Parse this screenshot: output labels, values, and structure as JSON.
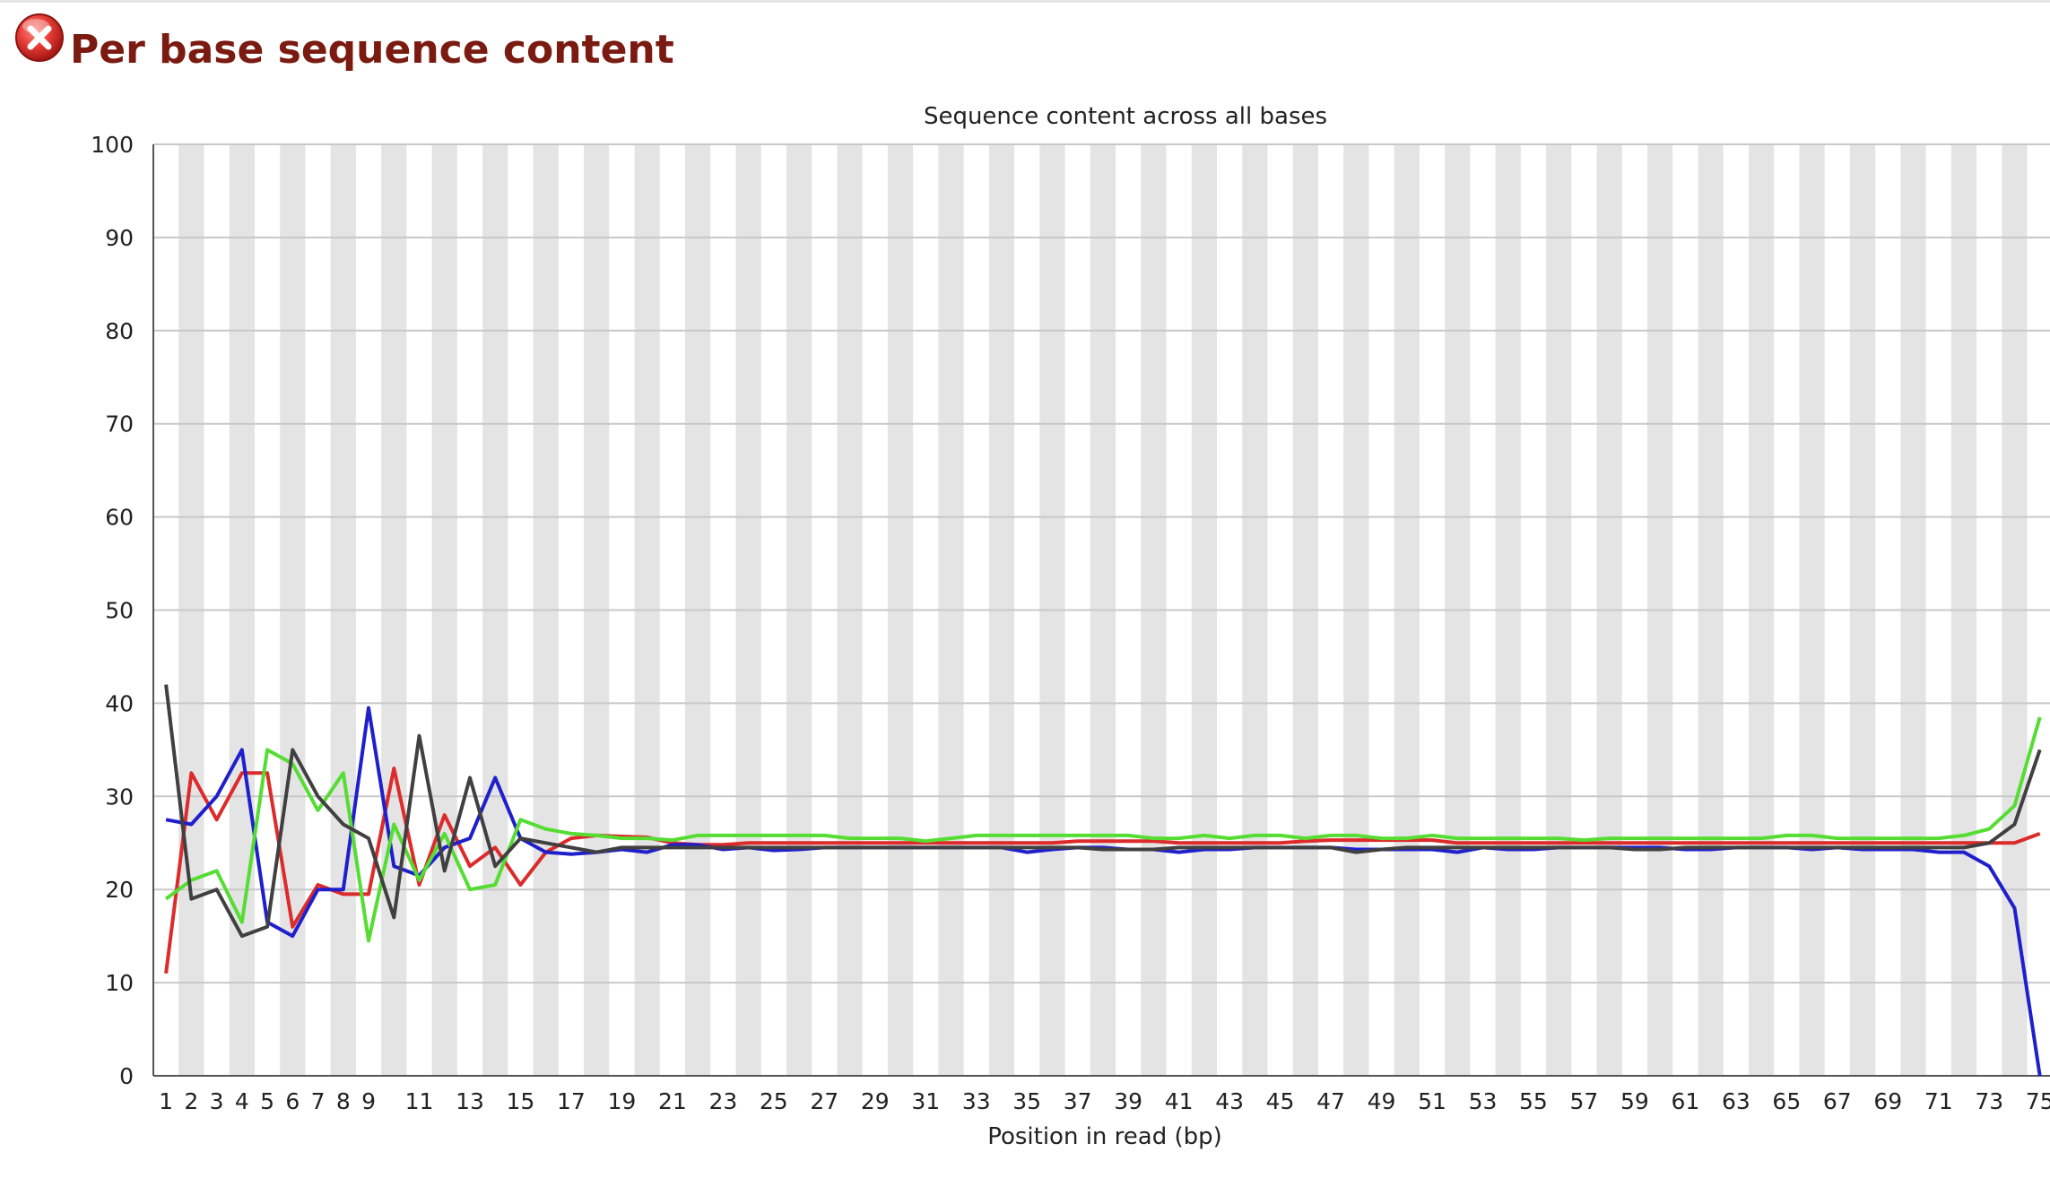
{
  "header": {
    "status_icon": "fail-icon",
    "title": "Per base sequence content"
  },
  "colors": {
    "title": "#7a1a10",
    "band": "#e4e4e4",
    "grid": "#c8c8c8",
    "axis": "#555555"
  },
  "chart_data": {
    "type": "line",
    "title": "Sequence content across all bases",
    "xlabel": "Position in read (bp)",
    "ylabel": "",
    "ylim": [
      0,
      100
    ],
    "yticks": [
      0,
      10,
      20,
      30,
      40,
      50,
      60,
      70,
      80,
      90,
      100
    ],
    "xlim": [
      1,
      75
    ],
    "xtick_labels": [
      "1",
      "2",
      "3",
      "4",
      "5",
      "6",
      "7",
      "8",
      "9",
      "11",
      "13",
      "15",
      "17",
      "19",
      "21",
      "23",
      "25",
      "27",
      "29",
      "31",
      "33",
      "35",
      "37",
      "39",
      "41",
      "43",
      "45",
      "47",
      "49",
      "51",
      "53",
      "55",
      "57",
      "59",
      "61",
      "63",
      "65",
      "67",
      "69",
      "71",
      "73",
      "75"
    ],
    "grid": true,
    "alternating_bands": true,
    "x": [
      1,
      2,
      3,
      4,
      5,
      6,
      7,
      8,
      9,
      10,
      11,
      12,
      13,
      14,
      15,
      16,
      17,
      18,
      19,
      20,
      21,
      22,
      23,
      24,
      25,
      26,
      27,
      28,
      29,
      30,
      31,
      32,
      33,
      34,
      35,
      36,
      37,
      38,
      39,
      40,
      41,
      42,
      43,
      44,
      45,
      46,
      47,
      48,
      49,
      50,
      51,
      52,
      53,
      54,
      55,
      56,
      57,
      58,
      59,
      60,
      61,
      62,
      63,
      64,
      65,
      66,
      67,
      68,
      69,
      70,
      71,
      72,
      73,
      74,
      75
    ],
    "series": [
      {
        "color": "#dd2a2a",
        "values": [
          11.0,
          32.5,
          27.5,
          32.5,
          32.5,
          16.0,
          20.5,
          19.5,
          19.5,
          33.0,
          20.5,
          28.0,
          22.5,
          24.5,
          20.5,
          24.0,
          25.5,
          25.8,
          25.7,
          25.6,
          25.0,
          24.8,
          24.8,
          25.0,
          25.0,
          25.0,
          25.0,
          25.0,
          25.0,
          25.0,
          25.0,
          25.0,
          25.0,
          25.0,
          25.0,
          25.0,
          25.2,
          25.2,
          25.2,
          25.2,
          25.0,
          25.0,
          25.0,
          25.0,
          25.0,
          25.2,
          25.3,
          25.3,
          25.3,
          25.3,
          25.3,
          25.0,
          25.0,
          25.0,
          25.0,
          25.0,
          25.0,
          25.0,
          25.0,
          25.0,
          25.0,
          25.0,
          25.0,
          25.0,
          25.0,
          25.0,
          25.0,
          25.0,
          25.0,
          25.0,
          25.0,
          25.0,
          25.0,
          25.0,
          26.0
        ]
      },
      {
        "color": "#1f1fcc",
        "values": [
          27.5,
          27.0,
          30.0,
          35.0,
          16.5,
          15.0,
          20.0,
          20.0,
          39.5,
          22.5,
          21.5,
          24.5,
          25.5,
          32.0,
          25.5,
          24.0,
          23.8,
          24.0,
          24.3,
          24.0,
          24.8,
          24.8,
          24.3,
          24.5,
          24.2,
          24.3,
          24.5,
          24.5,
          24.5,
          24.5,
          24.5,
          24.5,
          24.5,
          24.5,
          24.0,
          24.3,
          24.5,
          24.5,
          24.3,
          24.3,
          24.0,
          24.3,
          24.3,
          24.5,
          24.5,
          24.5,
          24.5,
          24.3,
          24.3,
          24.3,
          24.3,
          24.0,
          24.5,
          24.3,
          24.3,
          24.5,
          24.5,
          24.5,
          24.5,
          24.5,
          24.3,
          24.3,
          24.5,
          24.5,
          24.5,
          24.3,
          24.5,
          24.3,
          24.3,
          24.3,
          24.0,
          24.0,
          22.5,
          18.0,
          0.0
        ]
      },
      {
        "color": "#55dd33",
        "values": [
          19.0,
          21.0,
          22.0,
          16.5,
          35.0,
          33.5,
          28.5,
          32.5,
          14.5,
          27.0,
          21.0,
          26.0,
          20.0,
          20.5,
          27.5,
          26.5,
          26.0,
          25.8,
          25.5,
          25.5,
          25.3,
          25.8,
          25.8,
          25.8,
          25.8,
          25.8,
          25.8,
          25.5,
          25.5,
          25.5,
          25.2,
          25.5,
          25.8,
          25.8,
          25.8,
          25.8,
          25.8,
          25.8,
          25.8,
          25.5,
          25.5,
          25.8,
          25.5,
          25.8,
          25.8,
          25.5,
          25.8,
          25.8,
          25.5,
          25.5,
          25.8,
          25.5,
          25.5,
          25.5,
          25.5,
          25.5,
          25.3,
          25.5,
          25.5,
          25.5,
          25.5,
          25.5,
          25.5,
          25.5,
          25.8,
          25.8,
          25.5,
          25.5,
          25.5,
          25.5,
          25.5,
          25.8,
          26.5,
          29.0,
          38.5
        ]
      },
      {
        "color": "#404040",
        "values": [
          42.0,
          19.0,
          20.0,
          15.0,
          16.0,
          35.0,
          30.0,
          27.0,
          25.5,
          17.0,
          36.5,
          22.0,
          32.0,
          22.5,
          25.5,
          25.0,
          24.5,
          24.0,
          24.5,
          24.5,
          24.5,
          24.5,
          24.5,
          24.5,
          24.5,
          24.5,
          24.5,
          24.5,
          24.5,
          24.5,
          24.5,
          24.5,
          24.5,
          24.5,
          24.5,
          24.5,
          24.5,
          24.3,
          24.3,
          24.3,
          24.5,
          24.5,
          24.5,
          24.5,
          24.5,
          24.5,
          24.5,
          24.0,
          24.3,
          24.5,
          24.5,
          24.5,
          24.5,
          24.5,
          24.5,
          24.5,
          24.5,
          24.5,
          24.3,
          24.3,
          24.5,
          24.5,
          24.5,
          24.5,
          24.5,
          24.5,
          24.5,
          24.5,
          24.5,
          24.5,
          24.5,
          24.5,
          25.0,
          27.0,
          35.0
        ]
      }
    ]
  }
}
